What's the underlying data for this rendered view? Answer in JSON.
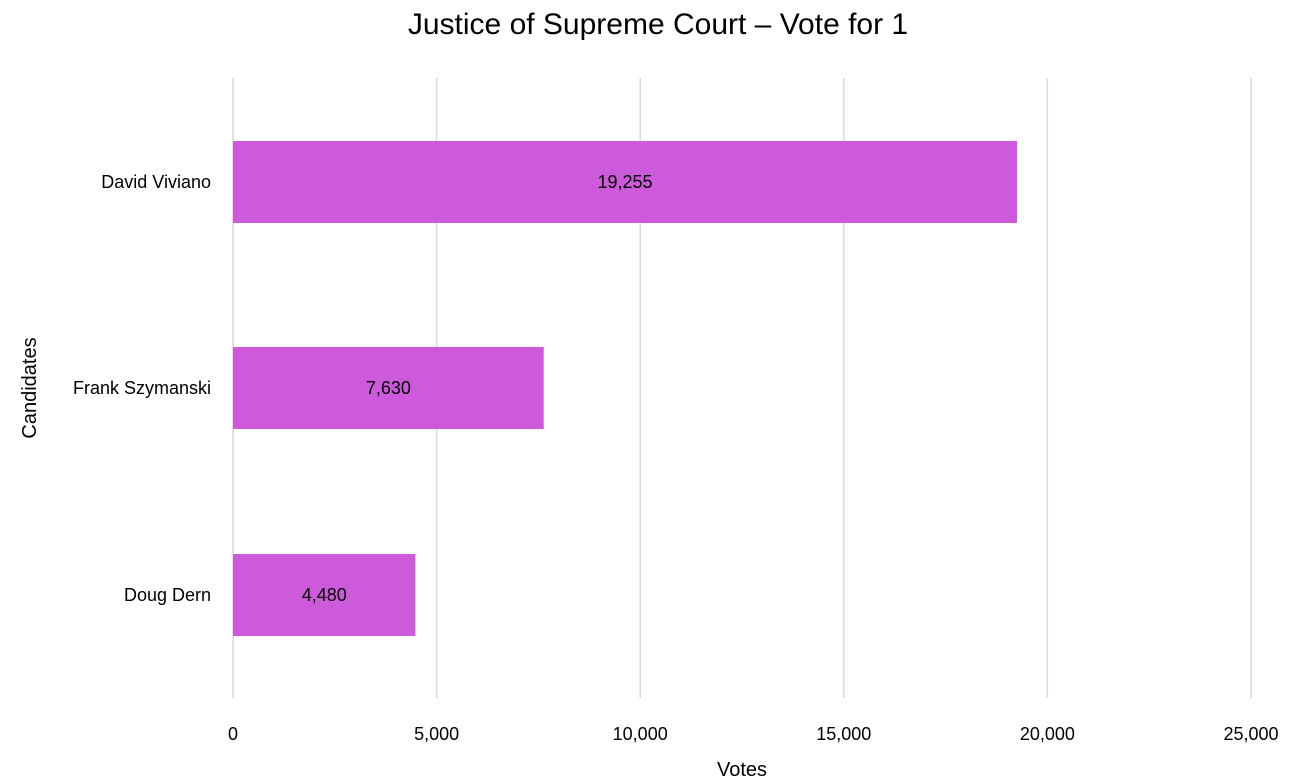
{
  "chart_data": {
    "type": "bar",
    "orientation": "horizontal",
    "title": "Justice of Supreme Court – Vote for 1",
    "xlabel": "Votes",
    "ylabel": "Candidates",
    "categories": [
      "David Viviano",
      "Frank Szymanski",
      "Doug Dern"
    ],
    "values": [
      19255,
      7630,
      4480
    ],
    "data_labels": [
      "19,255",
      "7,630",
      "4,480"
    ],
    "xlim": [
      0,
      25000
    ],
    "xticks": [
      0,
      5000,
      10000,
      15000,
      20000,
      25000
    ],
    "xtick_labels": [
      "0",
      "5,000",
      "10,000",
      "15,000",
      "20,000",
      "25,000"
    ],
    "grid": true,
    "legend": "none",
    "colors": {
      "bar": "#cd5ada",
      "grid": "#d9d9d9",
      "text": "#000000"
    }
  }
}
